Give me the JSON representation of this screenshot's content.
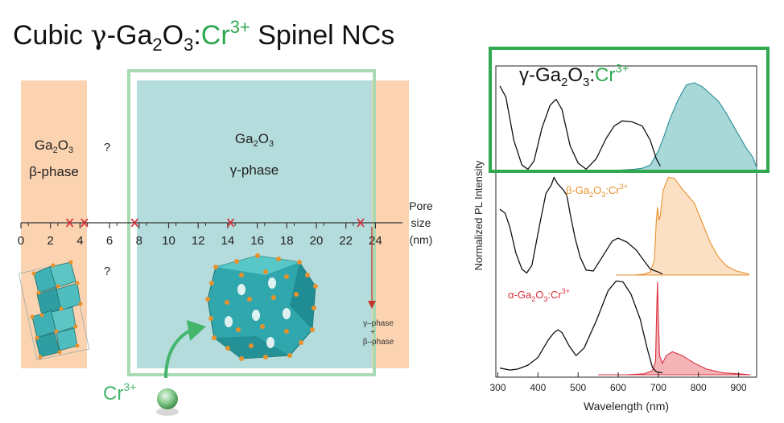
{
  "title": {
    "prefix": "Cubic ",
    "gamma": "γ",
    "ga": "-Ga",
    "sub1": "2",
    "o": "O",
    "sub2": "3",
    "colon": ":",
    "cr": "Cr",
    "sup": "3+",
    "suffix": " Spinel NCs"
  },
  "phase_diagram": {
    "beta_label": {
      "formula": "Ga",
      "sub1": "2",
      "o": "O",
      "sub2": "3",
      "phase": "β-phase"
    },
    "gamma_label": {
      "formula": "Ga",
      "sub1": "2",
      "o": "O",
      "sub2": "3",
      "phase": "γ-phase"
    },
    "question_top": "?",
    "question_bottom": "?",
    "axis_ticks": [
      "0",
      "2",
      "4",
      "6",
      "8",
      "10",
      "12",
      "14",
      "16",
      "18",
      "20",
      "22",
      "24"
    ],
    "axis_label": [
      "Pore",
      "size",
      "(nm)"
    ],
    "mixed_phase": [
      "γ–phase",
      "+",
      "β–phase"
    ],
    "dopant_label": "Cr",
    "dopant_sup": "3+"
  },
  "chart_data": {
    "type": "line",
    "xlabel": "Wavelength (nm)",
    "ylabel": "Normalized PL Intensity",
    "xlim": [
      295,
      945
    ],
    "xticks": [
      "300",
      "400",
      "500",
      "600",
      "700",
      "800",
      "900"
    ],
    "grid": false,
    "panels": [
      {
        "label": {
          "prefix": "γ-Ga",
          "sub1": "2",
          "o": "O",
          "sub2": "3",
          "colon": ":",
          "cr": "Cr",
          "sup": "3+"
        },
        "label_colors": {
          "main": "#111111",
          "cr": "#2fa84f"
        },
        "fill_color": "#a8d8d8",
        "fill_stroke": "#2a8c95",
        "excitation": [
          [
            305,
            0.83
          ],
          [
            320,
            0.72
          ],
          [
            340,
            0.3
          ],
          [
            360,
            0.06
          ],
          [
            375,
            0.02
          ],
          [
            390,
            0.1
          ],
          [
            410,
            0.42
          ],
          [
            430,
            0.64
          ],
          [
            445,
            0.7
          ],
          [
            460,
            0.6
          ],
          [
            480,
            0.25
          ],
          [
            500,
            0.08
          ],
          [
            520,
            0.02
          ],
          [
            545,
            0.12
          ],
          [
            570,
            0.32
          ],
          [
            590,
            0.44
          ],
          [
            610,
            0.49
          ],
          [
            635,
            0.48
          ],
          [
            660,
            0.44
          ],
          [
            680,
            0.3
          ],
          [
            695,
            0.12
          ],
          [
            705,
            0.05
          ]
        ],
        "emission": [
          [
            600,
            0.01
          ],
          [
            640,
            0.02
          ],
          [
            660,
            0.03
          ],
          [
            680,
            0.06
          ],
          [
            700,
            0.2
          ],
          [
            715,
            0.35
          ],
          [
            730,
            0.52
          ],
          [
            750,
            0.7
          ],
          [
            770,
            0.84
          ],
          [
            790,
            0.86
          ],
          [
            810,
            0.82
          ],
          [
            830,
            0.75
          ],
          [
            850,
            0.68
          ],
          [
            870,
            0.56
          ],
          [
            890,
            0.42
          ],
          [
            905,
            0.32
          ],
          [
            920,
            0.22
          ],
          [
            935,
            0.14
          ],
          [
            945,
            0.04
          ]
        ]
      },
      {
        "label": {
          "prefix": "β-Ga",
          "sub1": "2",
          "o": "O",
          "sub2": "3",
          "colon": ":",
          "cr": "Cr",
          "sup": "3+"
        },
        "label_colors": {
          "main": "#e8912d",
          "cr": "#e8912d"
        },
        "fill_color": "#fbe0c4",
        "fill_stroke": "#e8912d",
        "excitation": [
          [
            305,
            0.66
          ],
          [
            318,
            0.62
          ],
          [
            330,
            0.48
          ],
          [
            345,
            0.22
          ],
          [
            360,
            0.06
          ],
          [
            372,
            0.02
          ],
          [
            385,
            0.1
          ],
          [
            405,
            0.52
          ],
          [
            420,
            0.82
          ],
          [
            433,
            0.9
          ],
          [
            440,
            0.98
          ],
          [
            448,
            0.92
          ],
          [
            462,
            0.86
          ],
          [
            472,
            0.8
          ],
          [
            480,
            0.62
          ],
          [
            492,
            0.38
          ],
          [
            505,
            0.18
          ],
          [
            520,
            0.05
          ],
          [
            538,
            0.04
          ],
          [
            560,
            0.18
          ],
          [
            585,
            0.34
          ],
          [
            600,
            0.37
          ],
          [
            622,
            0.33
          ],
          [
            645,
            0.25
          ],
          [
            665,
            0.14
          ],
          [
            680,
            0.06
          ],
          [
            700,
            0.03
          ],
          [
            710,
            0.01
          ]
        ],
        "emission": [
          [
            595,
            0.0
          ],
          [
            640,
            0.0
          ],
          [
            665,
            0.01
          ],
          [
            680,
            0.03
          ],
          [
            690,
            0.15
          ],
          [
            695,
            0.55
          ],
          [
            698,
            0.68
          ],
          [
            702,
            0.55
          ],
          [
            705,
            0.6
          ],
          [
            712,
            0.85
          ],
          [
            725,
            0.98
          ],
          [
            740,
            0.97
          ],
          [
            760,
            0.86
          ],
          [
            790,
            0.72
          ],
          [
            810,
            0.52
          ],
          [
            830,
            0.32
          ],
          [
            850,
            0.18
          ],
          [
            870,
            0.09
          ],
          [
            895,
            0.04
          ],
          [
            925,
            0.01
          ]
        ]
      },
      {
        "label": {
          "prefix": "α-Ga",
          "sub1": "2",
          "o": "O",
          "sub2": "3",
          "colon": ":",
          "cr": "Cr",
          "sup": "3+"
        },
        "label_colors": {
          "main": "#d9303d",
          "cr": "#d9303d"
        },
        "fill_color": "#f5b4b8",
        "fill_stroke": "#d9303d",
        "excitation": [
          [
            305,
            0.07
          ],
          [
            330,
            0.05
          ],
          [
            350,
            0.06
          ],
          [
            375,
            0.1
          ],
          [
            400,
            0.18
          ],
          [
            425,
            0.36
          ],
          [
            440,
            0.44
          ],
          [
            450,
            0.47
          ],
          [
            460,
            0.44
          ],
          [
            478,
            0.3
          ],
          [
            495,
            0.2
          ],
          [
            515,
            0.28
          ],
          [
            545,
            0.56
          ],
          [
            575,
            0.88
          ],
          [
            595,
            0.98
          ],
          [
            612,
            0.97
          ],
          [
            632,
            0.84
          ],
          [
            655,
            0.58
          ],
          [
            672,
            0.28
          ],
          [
            685,
            0.08
          ],
          [
            695,
            0.03
          ],
          [
            710,
            0.02
          ]
        ],
        "emission": [
          [
            550,
            0.0
          ],
          [
            620,
            0.0
          ],
          [
            665,
            0.01
          ],
          [
            685,
            0.04
          ],
          [
            693,
            0.14
          ],
          [
            696,
            0.7
          ],
          [
            698,
            0.97
          ],
          [
            700,
            0.6
          ],
          [
            703,
            0.2
          ],
          [
            710,
            0.12
          ],
          [
            720,
            0.2
          ],
          [
            735,
            0.24
          ],
          [
            760,
            0.2
          ],
          [
            790,
            0.12
          ],
          [
            820,
            0.06
          ],
          [
            860,
            0.02
          ],
          [
            900,
            0.01
          ],
          [
            930,
            0.0
          ]
        ]
      }
    ]
  }
}
